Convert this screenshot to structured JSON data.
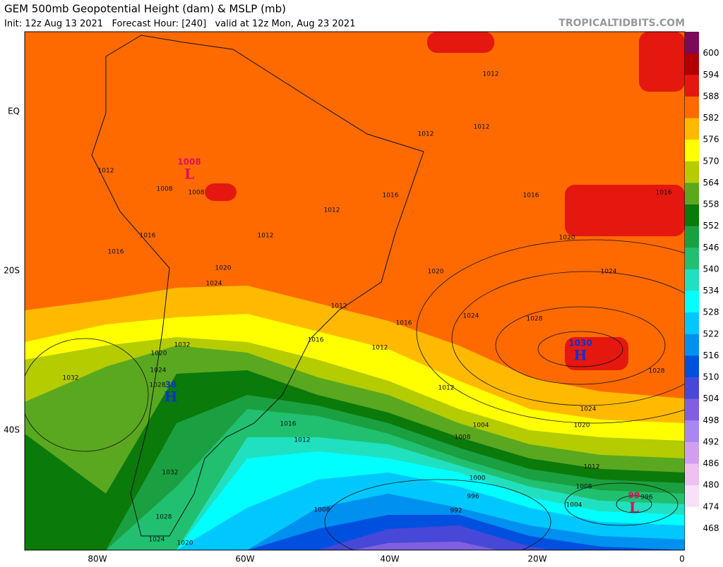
{
  "header": {
    "title": "GEM 500mb Geopotential Height (dam) & MSLP (mb)",
    "subtitle": "Init: 12z Aug 13 2021   Forecast Hour: [240]   valid at 12z Mon, Aug 23 2021",
    "watermark": "TROPICALTIDBITS.COM"
  },
  "axes": {
    "lat_labels": [
      "EQ",
      "20S",
      "40S"
    ],
    "lon_labels": [
      "80W",
      "60W",
      "40W",
      "20W",
      "0"
    ]
  },
  "colorbar": {
    "levels": [
      600,
      594,
      588,
      582,
      576,
      570,
      564,
      558,
      552,
      546,
      540,
      534,
      528,
      522,
      516,
      510,
      504,
      498,
      492,
      486,
      480,
      474,
      468
    ],
    "colors": [
      "#7a0a5a",
      "#b00000",
      "#e4180f",
      "#ff6a00",
      "#ffba00",
      "#ffff00",
      "#b4cc00",
      "#5aa820",
      "#0a7a0a",
      "#1aa040",
      "#20c070",
      "#20e0c0",
      "#00ffff",
      "#00c8ff",
      "#0090f0",
      "#0050e0",
      "#4848d8",
      "#8060e0",
      "#a888f0",
      "#d0a0f0",
      "#f0c0f0",
      "#f8e0f8",
      "#ffffff",
      "#ffffff"
    ]
  },
  "pressure_centers": [
    {
      "letter": "L",
      "value": "1008"
    },
    {
      "letter": "H",
      "value": "1030"
    },
    {
      "letter": "H",
      "value": "38"
    },
    {
      "letter": "L",
      "value": "99"
    }
  ],
  "isobar_labels": [
    "1012",
    "1012",
    "1012",
    "1012",
    "1008",
    "1008",
    "1016",
    "1016",
    "1016",
    "1012",
    "1012",
    "1016",
    "1016",
    "1020",
    "1020",
    "1024",
    "1020",
    "1024",
    "1012",
    "1024",
    "1028",
    "1016",
    "1016",
    "1012",
    "1032",
    "1020",
    "1028",
    "1024",
    "1032",
    "1028",
    "1012",
    "1024",
    "1004",
    "1020",
    "1016",
    "1008",
    "1012",
    "1012",
    "1032",
    "1000",
    "1008",
    "996",
    "996",
    "1004",
    "992",
    "1008",
    "1028",
    "1024",
    "1020"
  ]
}
